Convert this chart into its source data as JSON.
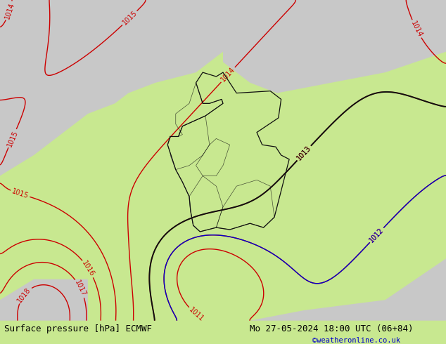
{
  "title_left": "Surface pressure [hPa] ECMWF",
  "title_right": "Mo 27-05-2024 18:00 UTC (06+84)",
  "copyright": "©weatheronline.co.uk",
  "bg_color_green": "#b8e890",
  "bg_color_gray": "#c8c8c8",
  "contour_color_red": "#cc0000",
  "contour_color_blue": "#0000cc",
  "contour_color_black": "#101010",
  "contour_color_gray": "#707070",
  "footer_bg": "#c8e890",
  "footer_text_color": "#000000",
  "footer_copyright_color": "#0000cc",
  "label_fontsize": 7,
  "footer_fontsize": 9
}
